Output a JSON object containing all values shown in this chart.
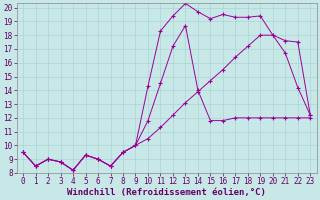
{
  "xlabel": "Windchill (Refroidissement éolien,°C)",
  "xlim": [
    -0.5,
    23.5
  ],
  "ylim": [
    8,
    20.3
  ],
  "xticks": [
    0,
    1,
    2,
    3,
    4,
    5,
    6,
    7,
    8,
    9,
    10,
    11,
    12,
    13,
    14,
    15,
    16,
    17,
    18,
    19,
    20,
    21,
    22,
    23
  ],
  "yticks": [
    8,
    9,
    10,
    11,
    12,
    13,
    14,
    15,
    16,
    17,
    18,
    19,
    20
  ],
  "background_color": "#c8e8e8",
  "grid_color": "#aad4d4",
  "line_color": "#990099",
  "marker": "+",
  "curve_top_x": [
    0,
    1,
    2,
    3,
    4,
    5,
    6,
    7,
    8,
    9,
    10,
    11,
    12,
    13,
    14,
    15,
    16,
    17,
    18,
    19,
    20,
    21,
    22,
    23
  ],
  "curve_top_y": [
    9.5,
    8.5,
    9.0,
    8.8,
    8.2,
    9.3,
    9.0,
    8.5,
    9.5,
    10.0,
    14.3,
    18.3,
    19.4,
    20.3,
    19.7,
    19.2,
    19.5,
    19.3,
    19.3,
    19.4,
    18.0,
    16.7,
    14.2,
    12.2
  ],
  "curve_mid_x": [
    0,
    1,
    2,
    3,
    4,
    5,
    6,
    7,
    8,
    9,
    10,
    11,
    12,
    13,
    14,
    15,
    16,
    17,
    18,
    19,
    20,
    21,
    22,
    23
  ],
  "curve_mid_y": [
    9.5,
    8.5,
    9.0,
    8.8,
    8.2,
    9.3,
    9.0,
    8.5,
    9.5,
    10.0,
    11.8,
    14.5,
    17.2,
    18.7,
    14.0,
    11.8,
    11.8,
    12.0,
    12.0,
    12.0,
    12.0,
    12.0,
    12.0,
    12.0
  ],
  "curve_bot_x": [
    0,
    1,
    2,
    3,
    4,
    5,
    6,
    7,
    8,
    9,
    10,
    11,
    12,
    13,
    14,
    15,
    16,
    17,
    18,
    19,
    20,
    21,
    22,
    23
  ],
  "curve_bot_y": [
    9.5,
    8.5,
    9.0,
    8.8,
    8.2,
    9.3,
    9.0,
    8.5,
    9.5,
    10.0,
    10.5,
    11.3,
    12.2,
    13.1,
    13.9,
    14.7,
    15.5,
    16.4,
    17.2,
    18.0,
    18.0,
    17.6,
    17.5,
    12.2
  ],
  "figsize": [
    3.2,
    2.0
  ],
  "dpi": 100,
  "tick_fontsize": 5.5,
  "xlabel_fontsize": 6.5
}
